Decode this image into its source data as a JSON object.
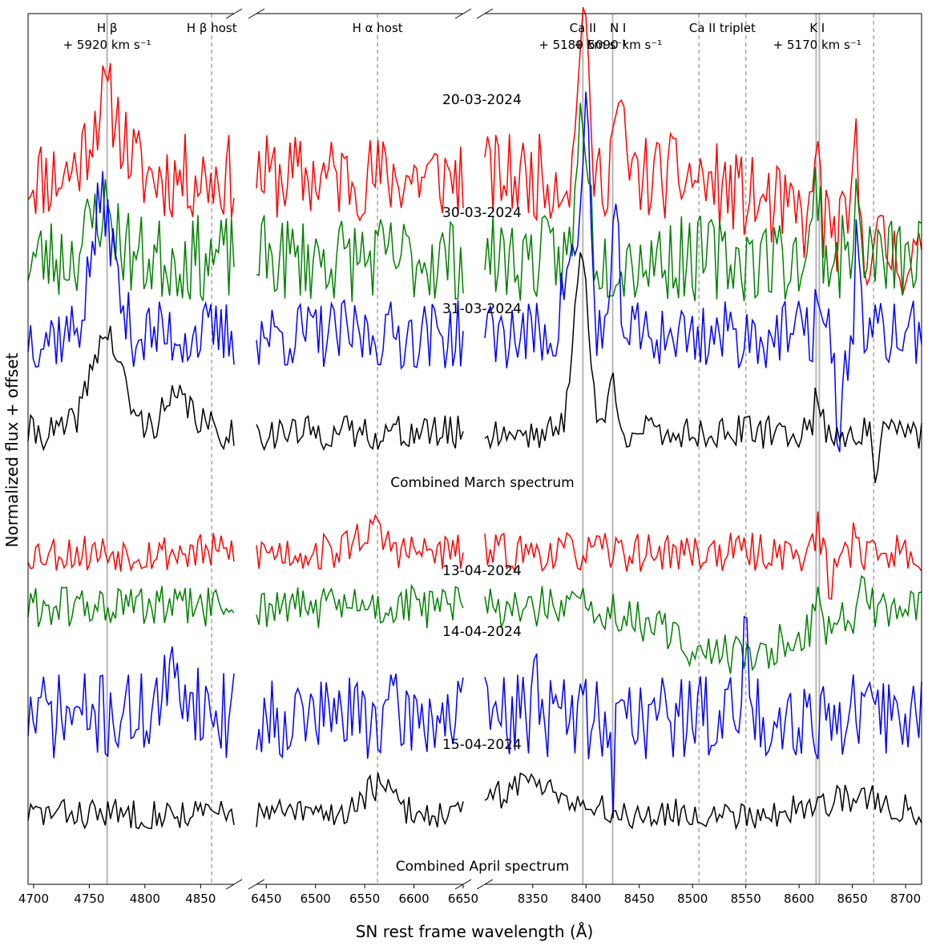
{
  "chart_data": {
    "type": "line",
    "xlabel": "SN rest frame wavelength (Å)",
    "ylabel": "Normalized flux + offset",
    "grid": false,
    "legend": "none",
    "panels": [
      {
        "xlim": [
          4695,
          4880
        ],
        "ticks": [
          4700,
          4750,
          4800,
          4850
        ]
      },
      {
        "xlim": [
          6440,
          6650
        ],
        "ticks": [
          6450,
          6500,
          6550,
          6600,
          6650
        ]
      },
      {
        "xlim": [
          8305,
          8715
        ],
        "ticks": [
          8350,
          8400,
          8450,
          8500,
          8550,
          8600,
          8650,
          8700
        ]
      }
    ],
    "lines": [
      {
        "x": 4766,
        "style": "solid"
      },
      {
        "x": 4860,
        "style": "dashed"
      },
      {
        "x": 6563,
        "style": "dashed"
      },
      {
        "x": 8397,
        "style": "solid"
      },
      {
        "x": 8425,
        "style": "solid"
      },
      {
        "x": 8506,
        "style": "dashed"
      },
      {
        "x": 8550,
        "style": "dashed"
      },
      {
        "x": 8616,
        "style": "solid"
      },
      {
        "x": 8619,
        "style": "solid"
      },
      {
        "x": 8670,
        "style": "dashed"
      }
    ],
    "annotations": [
      {
        "label_lines": [
          "H β",
          "+ 5920  km s⁻¹"
        ],
        "panel": 0,
        "x": 4766
      },
      {
        "label_lines": [
          "H β host"
        ],
        "panel": 0,
        "x": 4860
      },
      {
        "label_lines": [
          "H α host"
        ],
        "panel": 1,
        "x": 6563
      },
      {
        "label_lines": [
          "Ca II",
          "+ 5180 km s⁻¹"
        ],
        "panel": 2,
        "x": 8397
      },
      {
        "label_lines": [
          "N I",
          "+ 5090 km s⁻¹"
        ],
        "panel": 2,
        "x": 8430
      },
      {
        "label_lines": [
          "Ca II triplet"
        ],
        "panel": 2,
        "x": 8528
      },
      {
        "label_lines": [
          "K I",
          "+ 5170  km s⁻¹"
        ],
        "panel": 2,
        "x": 8617
      }
    ],
    "series": [
      {
        "name": "20-03-2024",
        "color": "#ff0000",
        "offset": 8.5,
        "amp": 1.0,
        "seed": 11,
        "features": [
          [
            4765,
            14,
            1.4
          ],
          [
            8397,
            4,
            3.4
          ],
          [
            8430,
            5,
            1.2
          ],
          [
            8617,
            2,
            2.0
          ],
          [
            8653,
            3,
            1.6
          ]
        ],
        "slope": [
          0.6,
          0.6,
          0.4
        ],
        "tail": [
          8500,
          8715,
          -1.6
        ]
      },
      {
        "name": "30-03-2024",
        "color": "#008000",
        "offset": 7.0,
        "amp": 1.0,
        "seed": 23,
        "features": [
          [
            4762,
            12,
            0.9
          ],
          [
            8397,
            5,
            2.8
          ],
          [
            8617,
            3,
            1.5
          ],
          [
            8653,
            3,
            1.0
          ]
        ]
      },
      {
        "name": "31-03-2024",
        "color": "#0000ff",
        "offset": 5.6,
        "amp": 0.8,
        "seed": 37,
        "features": [
          [
            4762,
            10,
            2.4
          ],
          [
            8385,
            6,
            1.5
          ],
          [
            8400,
            4,
            4.2
          ],
          [
            8428,
            4,
            1.8
          ],
          [
            8617,
            2,
            1.0
          ],
          [
            8638,
            4,
            -1.8
          ],
          [
            8655,
            2,
            2.2
          ]
        ]
      },
      {
        "name": "Combined March spectrum",
        "color": "#000000",
        "offset": 3.8,
        "amp": 0.4,
        "seed": 41,
        "features": [
          [
            4765,
            14,
            1.8
          ],
          [
            4830,
            14,
            0.6
          ],
          [
            8395,
            7,
            3.3
          ],
          [
            8425,
            5,
            0.9
          ],
          [
            8617,
            3,
            0.8
          ],
          [
            8672,
            3,
            -0.7
          ]
        ]
      },
      {
        "name": "13-04-2024",
        "color": "#ff0000",
        "offset": 1.6,
        "amp": 0.45,
        "seed": 53,
        "features": [
          [
            6555,
            15,
            0.4
          ],
          [
            8617,
            2,
            0.5
          ],
          [
            8630,
            3,
            -0.7
          ],
          [
            8653,
            2,
            0.6
          ]
        ]
      },
      {
        "name": "14-04-2024",
        "color": "#008000",
        "offset": 0.6,
        "amp": 0.5,
        "seed": 61,
        "features": [
          [
            8540,
            60,
            -0.9
          ],
          [
            8617,
            3,
            0.6
          ],
          [
            8662,
            3,
            0.7
          ]
        ]
      },
      {
        "name": "15-04-2024",
        "color": "#0000ff",
        "offset": -1.4,
        "amp": 1.0,
        "seed": 71,
        "features": [
          [
            4830,
            14,
            0.6
          ],
          [
            8353,
            2,
            1.6
          ],
          [
            8550,
            2,
            1.8
          ],
          [
            8425,
            2,
            -1.2
          ]
        ]
      },
      {
        "name": "Combined April spectrum",
        "color": "#000000",
        "offset": -3.2,
        "amp": 0.35,
        "seed": 83,
        "features": [
          [
            6563,
            15,
            0.5
          ],
          [
            8350,
            30,
            0.6
          ],
          [
            8650,
            30,
            0.3
          ]
        ]
      }
    ],
    "ylim": [
      -4.5,
      11.5
    ]
  }
}
